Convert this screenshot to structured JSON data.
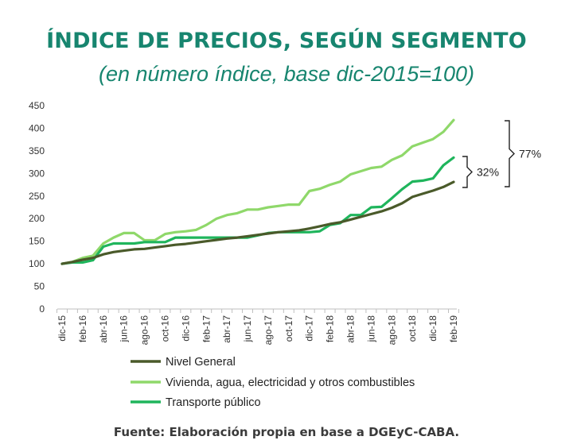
{
  "title": "ÍNDICE DE PRECIOS, SEGÚN SEGMENTO",
  "subtitle": "(en número índice, base dic-2015=100)",
  "source": "Fuente: Elaboración propia en base a DGEyC-CABA.",
  "colors": {
    "title": "#17856f",
    "nivel_general": "#4a5a2a",
    "vivienda": "#8fd86a",
    "transporte": "#1fb55c",
    "axis": "#bfbfbf"
  },
  "chart_data": {
    "type": "line",
    "x": [
      "dic-15",
      "ene-16",
      "feb-16",
      "mar-16",
      "abr-16",
      "may-16",
      "jun-16",
      "jul-16",
      "ago-16",
      "sep-16",
      "oct-16",
      "nov-16",
      "dic-16",
      "ene-17",
      "feb-17",
      "mar-17",
      "abr-17",
      "may-17",
      "jun-17",
      "jul-17",
      "ago-17",
      "sep-17",
      "oct-17",
      "nov-17",
      "dic-17",
      "ene-18",
      "feb-18",
      "mar-18",
      "abr-18",
      "may-18",
      "jun-18",
      "jul-18",
      "ago-18",
      "sep-18",
      "oct-18",
      "nov-18",
      "dic-18",
      "ene-19",
      "feb-19"
    ],
    "x_tick_labels": [
      "dic-15",
      "feb-16",
      "abr-16",
      "jun-16",
      "ago-16",
      "oct-16",
      "dic-16",
      "feb-17",
      "abr-17",
      "jun-17",
      "ago-17",
      "oct-17",
      "dic-17",
      "feb-18",
      "abr-18",
      "jun-18",
      "ago-18",
      "oct-18",
      "dic-18",
      "feb-19"
    ],
    "y_ticks": [
      0,
      50,
      100,
      150,
      200,
      250,
      300,
      350,
      400,
      450
    ],
    "ylim": [
      0,
      450
    ],
    "grid": false,
    "legend_position": "bottom",
    "series": [
      {
        "name": "Nivel General",
        "color": "#4a5a2a",
        "values": [
          100,
          104,
          109,
          113,
          121,
          126,
          129,
          132,
          133,
          136,
          139,
          142,
          144,
          147,
          150,
          153,
          156,
          158,
          161,
          164,
          167,
          170,
          172,
          174,
          178,
          183,
          188,
          192,
          198,
          204,
          210,
          216,
          224,
          234,
          248,
          255,
          262,
          270,
          281
        ]
      },
      {
        "name": "Vivienda, agua, electricidad y otros combustibles",
        "color": "#8fd86a",
        "values": [
          100,
          104,
          113,
          118,
          145,
          158,
          168,
          168,
          152,
          152,
          166,
          170,
          172,
          175,
          186,
          200,
          208,
          212,
          220,
          220,
          225,
          228,
          231,
          231,
          261,
          266,
          275,
          282,
          298,
          305,
          312,
          315,
          330,
          340,
          360,
          368,
          376,
          392,
          418
        ]
      },
      {
        "name": "Transporte público",
        "color": "#1fb55c",
        "values": [
          100,
          103,
          103,
          108,
          138,
          145,
          145,
          145,
          148,
          148,
          148,
          158,
          158,
          158,
          158,
          158,
          158,
          158,
          158,
          163,
          168,
          170,
          170,
          170,
          170,
          172,
          186,
          190,
          208,
          208,
          225,
          226,
          245,
          265,
          282,
          284,
          289,
          318,
          335
        ]
      }
    ],
    "annotations": [
      "77%",
      "32%"
    ]
  }
}
